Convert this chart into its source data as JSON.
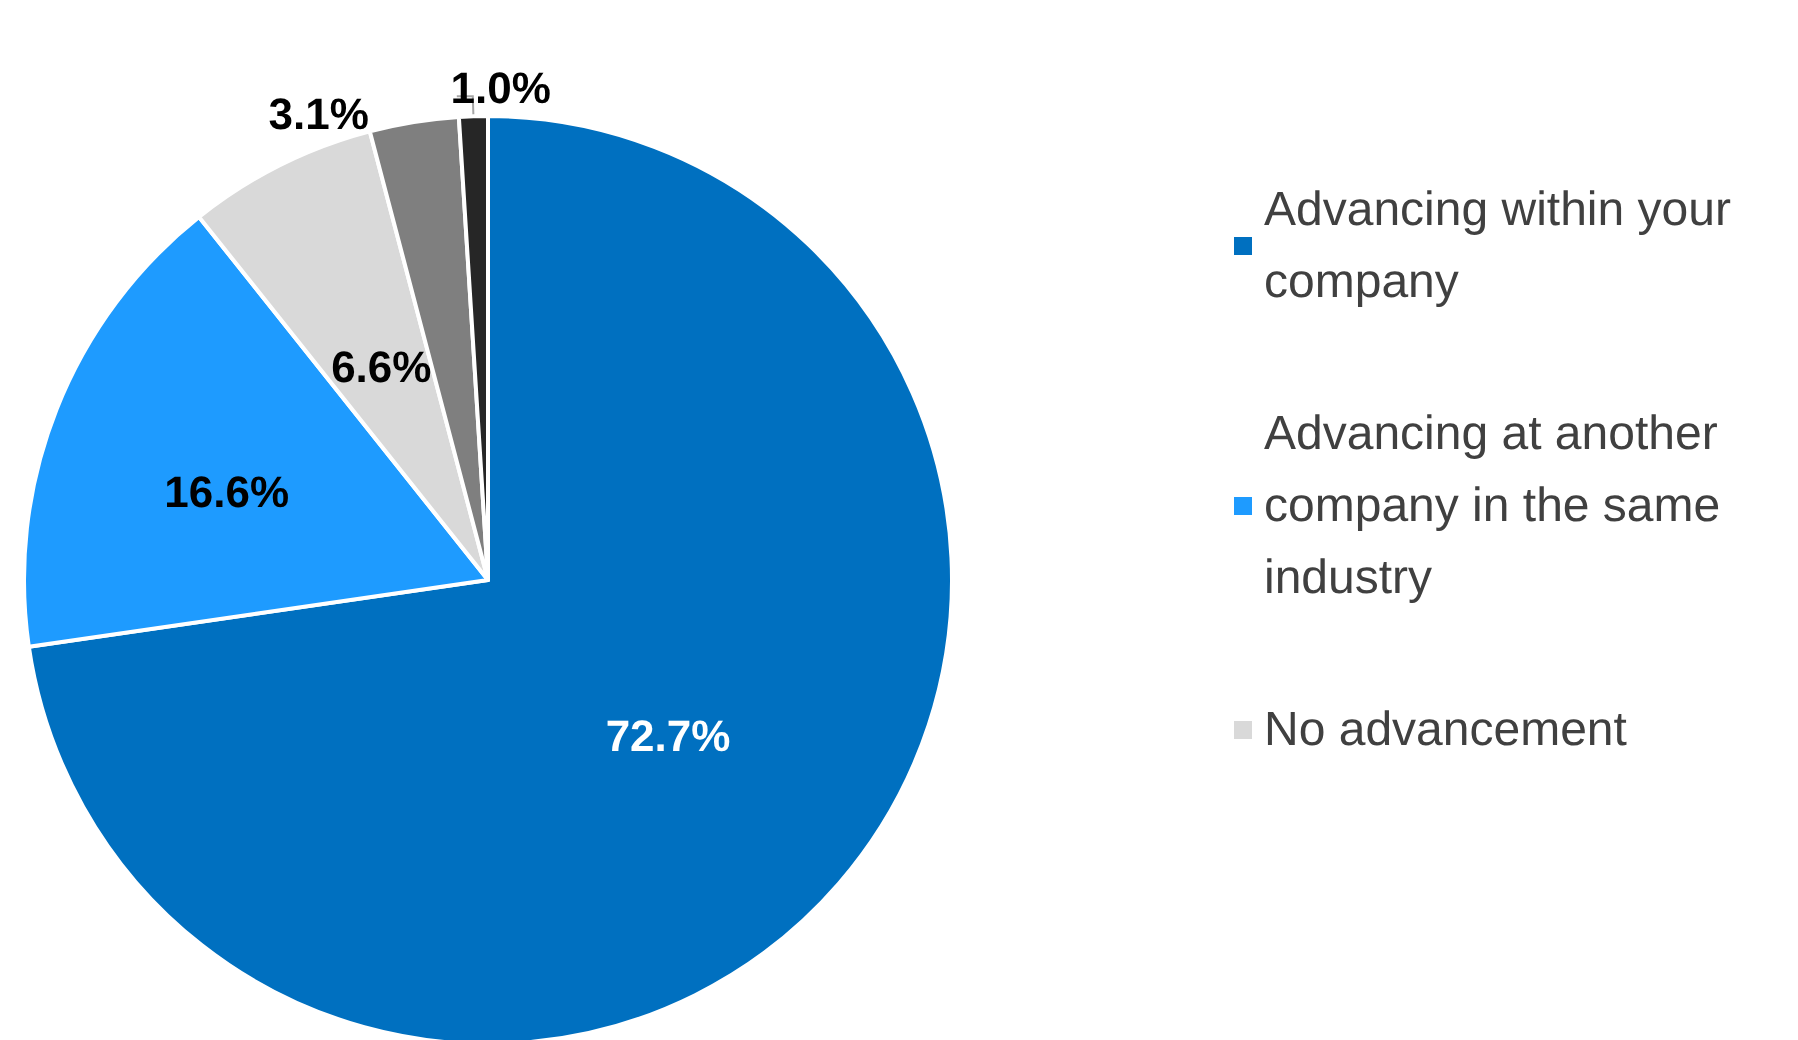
{
  "chart_data": {
    "type": "pie",
    "categories": [
      "Advancing within your company",
      "Advancing at another company in the same industry",
      "No advancement",
      null,
      null
    ],
    "values": [
      72.7,
      16.6,
      6.6,
      3.1,
      1.0
    ],
    "value_labels": [
      "72.7%",
      "16.6%",
      "6.6%",
      "3.1%",
      "1.0%"
    ],
    "colors": [
      "#0070c0",
      "#1e9bff",
      "#d9d9d9",
      "#7f7f7f",
      "#262626"
    ],
    "legend": "right"
  }
}
